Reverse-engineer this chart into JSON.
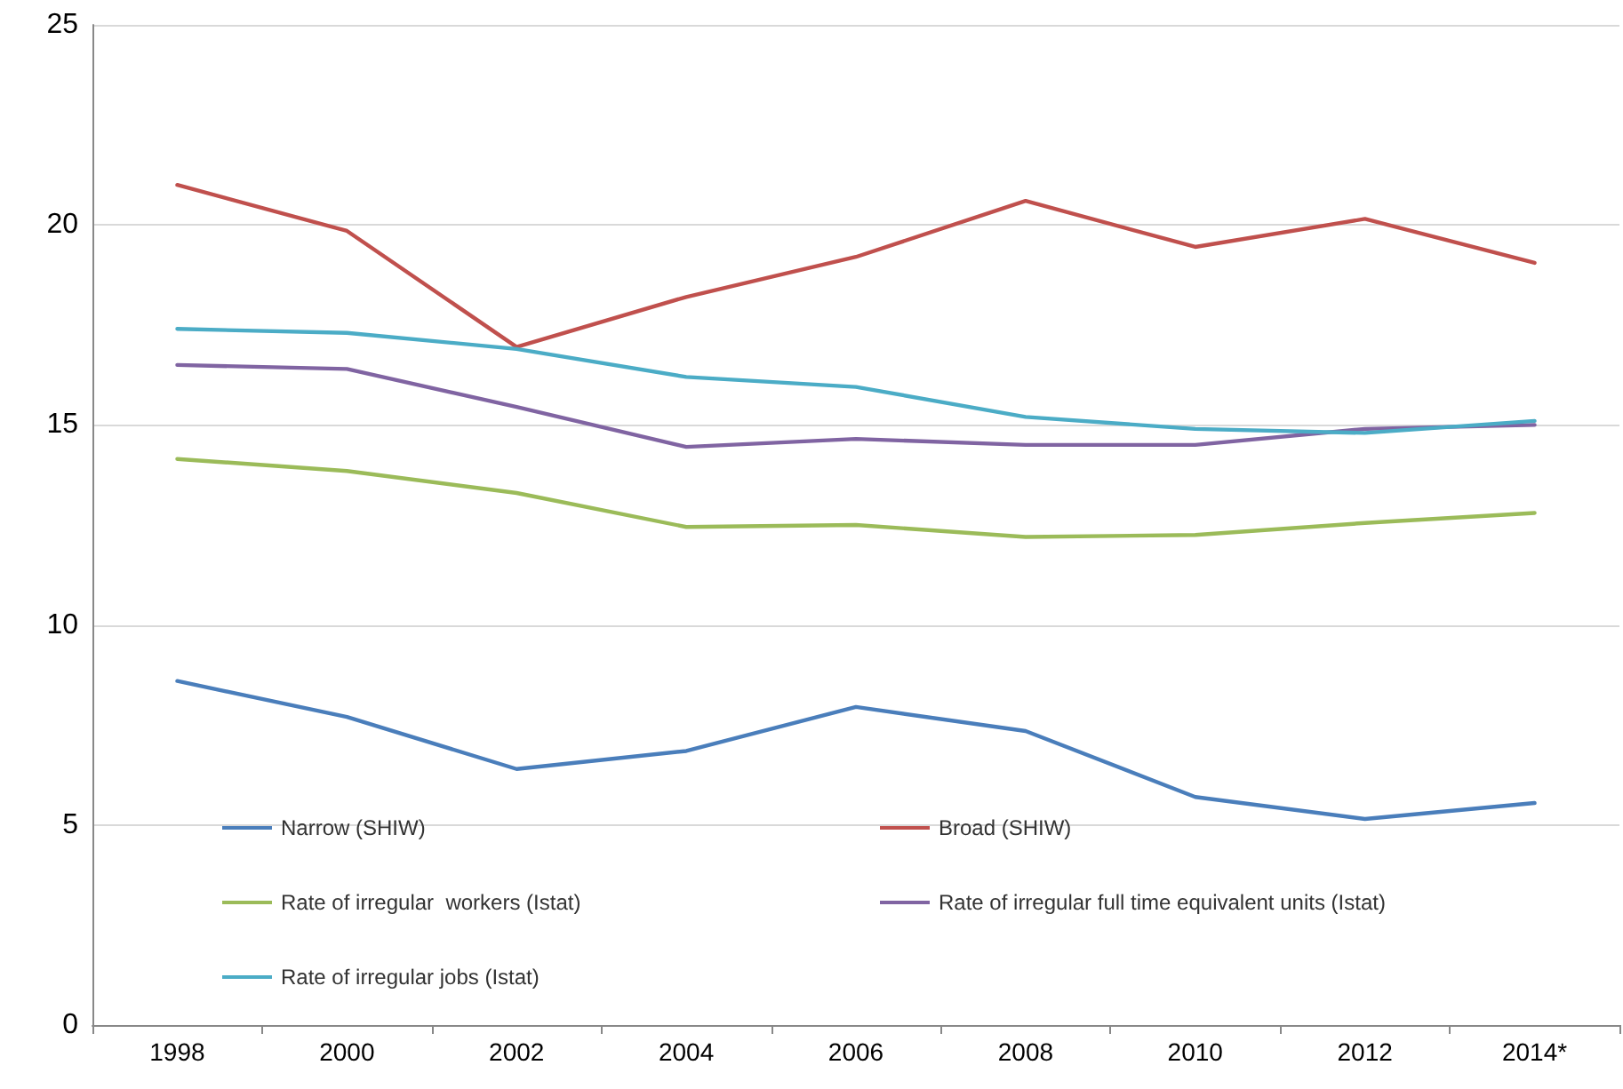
{
  "chart_data": {
    "type": "line",
    "categories": [
      "1998",
      "2000",
      "2002",
      "2004",
      "2006",
      "2008",
      "2010",
      "2012",
      "2014*"
    ],
    "ylim": [
      0,
      25
    ],
    "yticks": [
      0,
      5,
      10,
      15,
      20,
      25
    ],
    "grid": "y",
    "legend": "bottom",
    "marker": "none",
    "line_style": "solid",
    "series": [
      {
        "name": "Narrow (SHIW)",
        "color": "#4a7ebb",
        "values": [
          8.6,
          7.7,
          6.4,
          6.85,
          7.95,
          7.35,
          5.7,
          5.15,
          5.55
        ]
      },
      {
        "name": "Broad (SHIW)",
        "color": "#c0504d",
        "values": [
          21.0,
          19.85,
          16.95,
          18.2,
          19.2,
          20.6,
          19.45,
          20.15,
          19.05
        ]
      },
      {
        "name": "Rate of irregular  workers (Istat)",
        "color": "#9bbb59",
        "values": [
          14.15,
          13.85,
          13.3,
          12.45,
          12.5,
          12.2,
          12.25,
          12.55,
          12.8
        ]
      },
      {
        "name": "Rate of irregular full time equivalent units (Istat)",
        "color": "#8064a2",
        "values": [
          16.5,
          16.4,
          15.45,
          14.45,
          14.65,
          14.5,
          14.5,
          14.9,
          15.0
        ]
      },
      {
        "name": "Rate of irregular jobs (Istat)",
        "color": "#4bacc6",
        "values": [
          17.4,
          17.3,
          16.9,
          16.2,
          15.95,
          15.2,
          14.9,
          14.8,
          15.1
        ]
      }
    ]
  }
}
